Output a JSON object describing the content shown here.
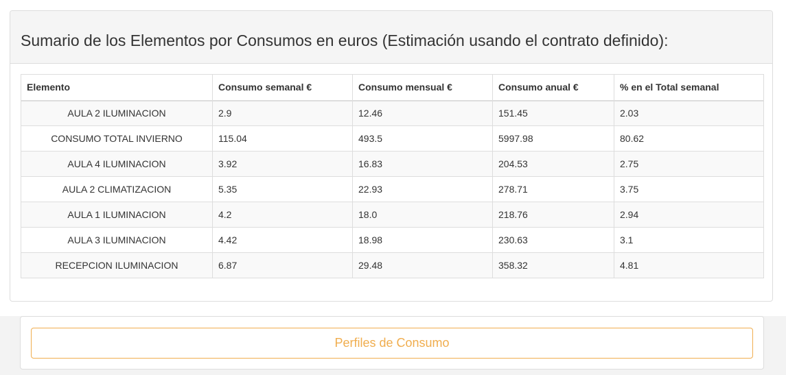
{
  "panel": {
    "title": "Sumario de los Elementos por Consumos en euros (Estimación usando el contrato definido):"
  },
  "table": {
    "headers": [
      "Elemento",
      "Consumo semanal €",
      "Consumo mensual €",
      "Consumo anual €",
      "% en el Total semanal"
    ],
    "rows": [
      [
        "AULA 2 ILUMINACION",
        "2.9",
        "12.46",
        "151.45",
        "2.03"
      ],
      [
        "CONSUMO TOTAL INVIERNO",
        "115.04",
        "493.5",
        "5997.98",
        "80.62"
      ],
      [
        "AULA 4 ILUMINACION",
        "3.92",
        "16.83",
        "204.53",
        "2.75"
      ],
      [
        "AULA 2 CLIMATIZACION",
        "5.35",
        "22.93",
        "278.71",
        "3.75"
      ],
      [
        "AULA 1 ILUMINACION",
        "4.2",
        "18.0",
        "218.76",
        "2.94"
      ],
      [
        "AULA 3 ILUMINACION",
        "4.42",
        "18.98",
        "230.63",
        "3.1"
      ],
      [
        "RECEPCION ILUMINACION",
        "6.87",
        "29.48",
        "358.32",
        "4.81"
      ]
    ]
  },
  "actions": {
    "profiles_label": "Perfiles de Consumo"
  },
  "colors": {
    "accent": "#f0ad4e",
    "heading_bg": "#f5f5f5",
    "border": "#dddddd",
    "stripe": "#f9f9f9"
  }
}
